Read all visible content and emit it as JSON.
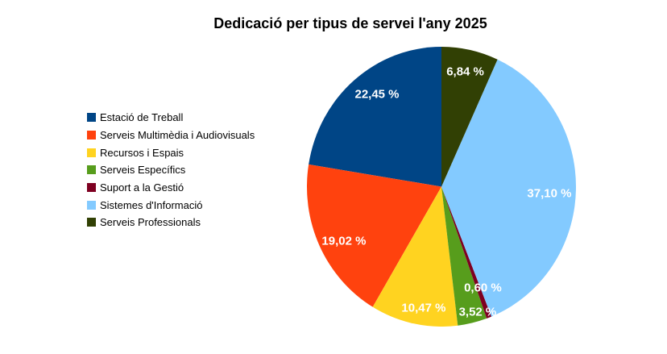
{
  "chart_data": {
    "type": "pie",
    "title": "Dedicació per tipus de servei l'any 2025",
    "unit": "%",
    "legend_position": "left",
    "start_angle_deg": 90,
    "direction": "counterclockwise",
    "background": "#ffffff",
    "slices": [
      {
        "label": "Estació de Treball",
        "value": 22.45,
        "display": "22,45 %",
        "color": "#004586",
        "label_dx": -0.479,
        "label_dy": -0.661
      },
      {
        "label": "Serveis Multimèdia i Audiovisuals",
        "value": 19.02,
        "display": "19,02 %",
        "color": "#FF420E",
        "label_dx": -0.725,
        "label_dy": 0.39
      },
      {
        "label": "Recursos i Espais",
        "value": 10.47,
        "display": "10,47 %",
        "color": "#FFD320",
        "label_dx": -0.132,
        "label_dy": 0.869
      },
      {
        "label": "Serveis Específics",
        "value": 3.52,
        "display": "3,52 %",
        "color": "#579D1C",
        "label_dx": 0.269,
        "label_dy": 0.898
      },
      {
        "label": "Suport a la Gestió",
        "value": 0.6,
        "display": "0,60 %",
        "color": "#7E0021",
        "label_dx": 0.308,
        "label_dy": 0.727
      },
      {
        "label": "Sistemes d'Informació",
        "value": 37.1,
        "display": "37,10 %",
        "color": "#83CAFF",
        "label_dx": 0.802,
        "label_dy": 0.049
      },
      {
        "label": "Serveis Professionals",
        "value": 6.84,
        "display": "6,84 %",
        "color": "#314004",
        "label_dx": 0.177,
        "label_dy": -0.825
      }
    ]
  }
}
